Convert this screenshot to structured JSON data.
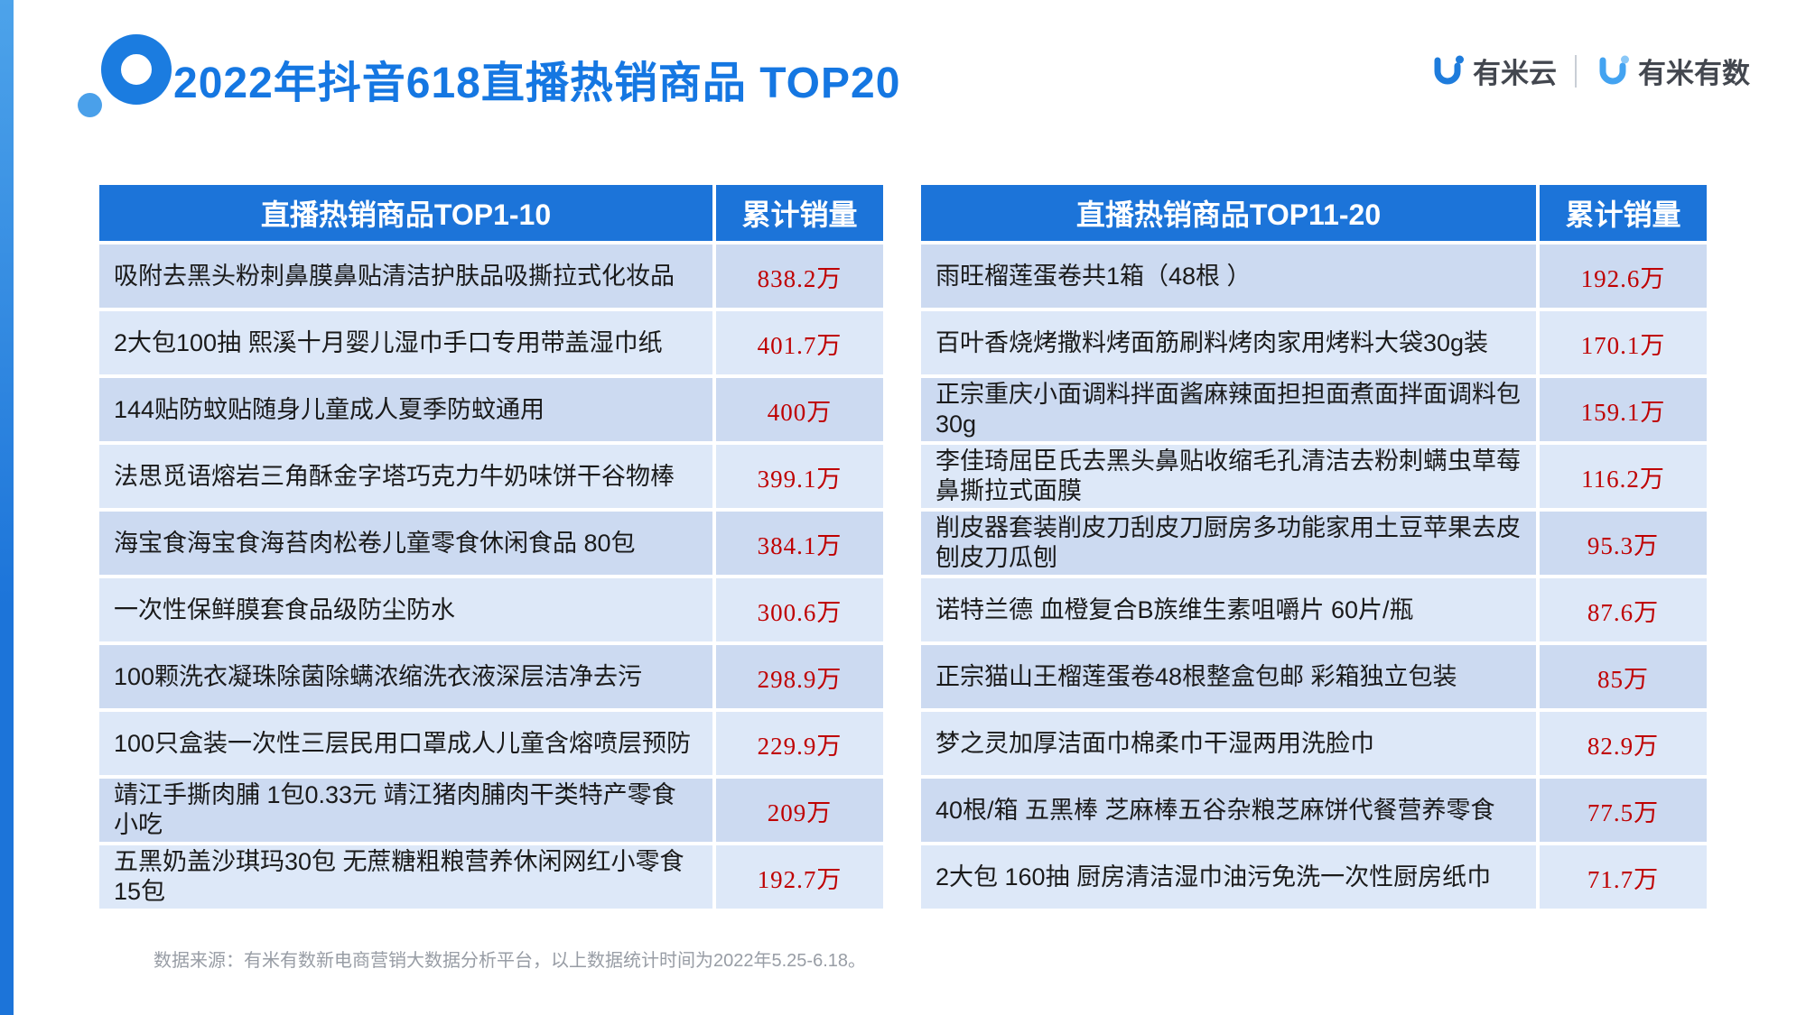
{
  "page": {
    "title": "2022年抖音618直播热销商品 TOP20",
    "footer": "数据来源：有米有数新电商营销大数据分析平台，以上数据统计时间为2022年5.25-6.18。"
  },
  "brand": {
    "brand1_label": "有米云",
    "brand2_label": "有米有数",
    "icons": {
      "brand1_icon": "u-dot-icon",
      "brand2_icon": "u-dot-icon"
    }
  },
  "colors": {
    "accent_blue": "#1c74d9",
    "title_blue": "#1577e2",
    "row_dark": "#ccdaf1",
    "row_light": "#dde8f8",
    "value_red": "#bf0000"
  },
  "chart_data": [
    {
      "type": "table",
      "title": "直播热销商品TOP1-10",
      "sales_header": "累计销量",
      "rows": [
        {
          "name": "吸附去黑头粉刺鼻膜鼻贴清洁护肤品吸撕拉式化妆品",
          "value": "838.2万"
        },
        {
          "name": "2大包100抽  熙溪十月婴儿湿巾手口专用带盖湿巾纸",
          "value": "401.7万"
        },
        {
          "name": "144贴防蚊贴随身儿童成人夏季防蚊通用",
          "value": "400万"
        },
        {
          "name": "法思觅语熔岩三角酥金字塔巧克力牛奶味饼干谷物棒",
          "value": "399.1万"
        },
        {
          "name": "海宝食海宝食海苔肉松卷儿童零食休闲食品 80包",
          "value": "384.1万"
        },
        {
          "name": "一次性保鲜膜套食品级防尘防水",
          "value": "300.6万"
        },
        {
          "name": "100颗洗衣凝珠除菌除螨浓缩洗衣液深层洁净去污",
          "value": "298.9万"
        },
        {
          "name": "100只盒装一次性三层民用口罩成人儿童含熔喷层预防",
          "value": "229.9万"
        },
        {
          "name": "靖江手撕肉脯 1包0.33元 靖江猪肉脯肉干类特产零食小吃",
          "value": "209万"
        },
        {
          "name": "五黑奶盖沙琪玛30包 无蔗糖粗粮营养休闲网红小零食15包",
          "value": "192.7万"
        }
      ]
    },
    {
      "type": "table",
      "title": "直播热销商品TOP11-20",
      "sales_header": "累计销量",
      "rows": [
        {
          "name": "雨旺榴莲蛋卷共1箱（48根 ）",
          "value": "192.6万"
        },
        {
          "name": "百叶香烧烤撒料烤面筋刷料烤肉家用烤料大袋30g装",
          "value": "170.1万"
        },
        {
          "name": "正宗重庆小面调料拌面酱麻辣面担担面煮面拌面调料包30g",
          "value": "159.1万"
        },
        {
          "name": "李佳琦屈臣氏去黑头鼻贴收缩毛孔清洁去粉刺螨虫草莓鼻撕拉式面膜",
          "value": "116.2万"
        },
        {
          "name": "削皮器套装削皮刀刮皮刀厨房多功能家用土豆苹果去皮刨皮刀瓜刨",
          "value": "95.3万"
        },
        {
          "name": "诺特兰德 血橙复合B族维生素咀嚼片 60片/瓶",
          "value": "87.6万"
        },
        {
          "name": "正宗猫山王榴莲蛋卷48根整盒包邮 彩箱独立包装",
          "value": "85万"
        },
        {
          "name": "梦之灵加厚洁面巾棉柔巾干湿两用洗脸巾",
          "value": "82.9万"
        },
        {
          "name": "40根/箱 五黑棒 芝麻棒五谷杂粮芝麻饼代餐营养零食",
          "value": "77.5万"
        },
        {
          "name": "2大包 160抽  厨房清洁湿巾油污免洗一次性厨房纸巾",
          "value": "71.7万"
        }
      ]
    }
  ]
}
